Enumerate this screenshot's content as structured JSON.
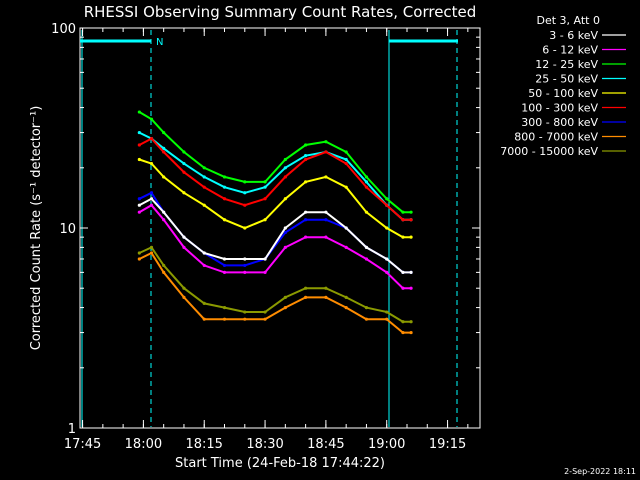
{
  "chart_data": {
    "type": "line",
    "title": "RHESSI Observing Summary Count Rates, Corrected",
    "xlabel": "Start Time (24-Feb-18 17:44:22)",
    "ylabel": "Corrected Count Rate (s⁻¹ detector⁻¹)",
    "yscale": "log",
    "ylim": [
      1,
      100
    ],
    "xlim": [
      "17:44:22",
      "19:23:00"
    ],
    "x_ticks": [
      "17:45",
      "18:00",
      "18:15",
      "18:30",
      "18:45",
      "19:00",
      "19:15"
    ],
    "y_ticks": [
      "1",
      "10",
      "100"
    ],
    "legend_title": "Det 3, Att 0",
    "legend_position": "right",
    "flag_label": "N",
    "footer": "2-Sep-2022 18:11",
    "x": [
      "17:59",
      "18:02",
      "18:05",
      "18:10",
      "18:15",
      "18:20",
      "18:25",
      "18:30",
      "18:35",
      "18:40",
      "18:45",
      "18:50",
      "18:55",
      "19:00",
      "19:04",
      "19:06"
    ],
    "series": [
      {
        "name": "3 - 6 keV",
        "color": "#ffffff",
        "values": [
          13,
          14,
          12,
          9,
          7.5,
          7,
          7,
          7,
          10,
          12,
          12,
          10,
          8,
          7,
          6,
          6
        ]
      },
      {
        "name": "6 - 12 keV",
        "color": "#ff00ff",
        "values": [
          12,
          13,
          11,
          8,
          6.5,
          6,
          6,
          6,
          8,
          9,
          9,
          8,
          7,
          6,
          5,
          5
        ]
      },
      {
        "name": "12 - 25 keV",
        "color": "#00ff00",
        "values": [
          38,
          35,
          30,
          24,
          20,
          18,
          17,
          17,
          22,
          26,
          27,
          24,
          18,
          14,
          12,
          12
        ]
      },
      {
        "name": "25 - 50 keV",
        "color": "#00ffff",
        "values": [
          30,
          28,
          25,
          21,
          18,
          16,
          15,
          16,
          20,
          23,
          24,
          22,
          17,
          13,
          11,
          11
        ]
      },
      {
        "name": "50 - 100 keV",
        "color": "#ffff00",
        "values": [
          22,
          21,
          18,
          15,
          13,
          11,
          10,
          11,
          14,
          17,
          18,
          16,
          12,
          10,
          9,
          9
        ]
      },
      {
        "name": "100 - 300 keV",
        "color": "#ff0000",
        "values": [
          26,
          28,
          24,
          19,
          16,
          14,
          13,
          14,
          18,
          22,
          24,
          21,
          16,
          13,
          11,
          11
        ]
      },
      {
        "name": "300 - 800 keV",
        "color": "#0000ff",
        "values": [
          14,
          15,
          12,
          9,
          7.5,
          6.5,
          6.5,
          7,
          9.5,
          11,
          11,
          10,
          8,
          7,
          6,
          6
        ]
      },
      {
        "name": "800 - 7000 keV",
        "color": "#ff8c00",
        "values": [
          7,
          7.5,
          6,
          4.5,
          3.5,
          3.5,
          3.5,
          3.5,
          4,
          4.5,
          4.5,
          4,
          3.5,
          3.5,
          3,
          3
        ]
      },
      {
        "name": "7000 - 15000 keV",
        "color": "#8b9a00",
        "values": [
          7.5,
          8,
          6.5,
          5,
          4.2,
          4,
          3.8,
          3.8,
          4.5,
          5,
          5,
          4.5,
          4,
          3.8,
          3.4,
          3.4
        ]
      }
    ]
  }
}
